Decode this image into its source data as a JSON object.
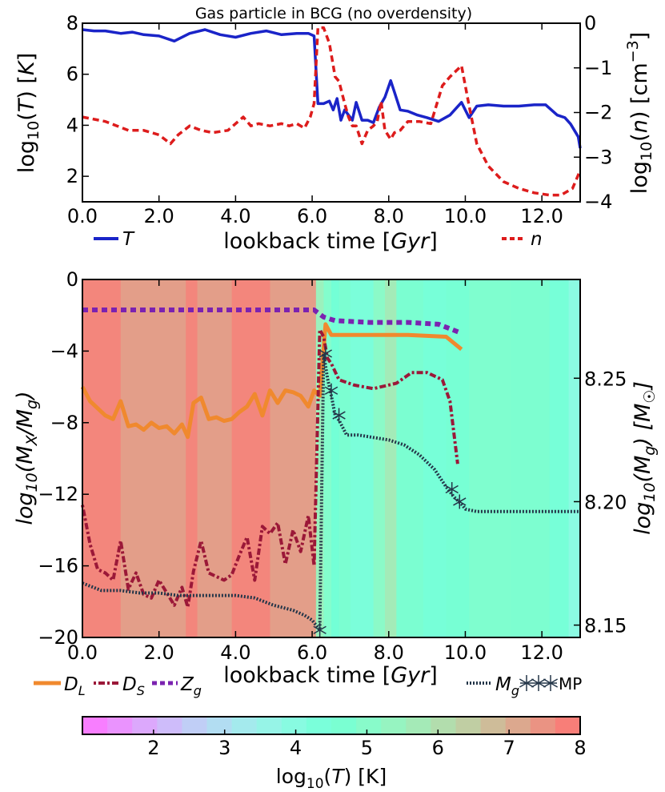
{
  "chart_data": [
    {
      "type": "line",
      "title": "Gas particle in BCG (no overdensity)",
      "xlabel": "lookback time [Gyr]",
      "ylabel": "log10(T) [K]",
      "ylabel2": "log10(n) [cm^-3]",
      "xlim": [
        0,
        13
      ],
      "ylim": [
        1,
        8
      ],
      "ylim2": [
        -4,
        0
      ],
      "xticks": [
        "0.0",
        "2.0",
        "4.0",
        "6.0",
        "8.0",
        "10.0",
        "12.0"
      ],
      "yticks": [
        "2",
        "4",
        "6",
        "8"
      ],
      "yticks2": [
        "0",
        "-1",
        "-2",
        "-3",
        "-4"
      ],
      "legend_T": "T",
      "legend_n": "n",
      "colors": {
        "T": "#1a24c8",
        "n": "#dd1c1c"
      },
      "series": [
        {
          "name": "T",
          "axis": "left",
          "x": [
            0,
            0.3,
            0.6,
            1,
            1.3,
            1.6,
            2,
            2.4,
            2.8,
            3.2,
            3.6,
            4,
            4.4,
            4.8,
            5.2,
            5.6,
            5.9,
            6.05,
            6.15,
            6.3,
            6.45,
            6.55,
            6.65,
            6.75,
            6.85,
            6.95,
            7.05,
            7.15,
            7.3,
            7.45,
            7.6,
            7.75,
            7.9,
            8.05,
            8.15,
            8.3,
            8.5,
            8.75,
            9,
            9.3,
            9.6,
            9.9,
            10.1,
            10.3,
            10.6,
            11,
            11.4,
            11.8,
            12.1,
            12.4,
            12.6,
            12.75,
            12.85,
            12.95,
            13
          ],
          "y": [
            7.75,
            7.7,
            7.7,
            7.6,
            7.65,
            7.55,
            7.5,
            7.3,
            7.6,
            7.75,
            7.55,
            7.45,
            7.6,
            7.7,
            7.55,
            7.6,
            7.6,
            7.5,
            4.85,
            4.85,
            4.95,
            4.6,
            5.05,
            4.2,
            4.6,
            4.4,
            4.2,
            4.9,
            4.2,
            4.2,
            4.1,
            4.7,
            5.1,
            5.75,
            5.3,
            4.6,
            4.55,
            4.4,
            4.3,
            4.15,
            4.4,
            4.9,
            4.3,
            4.75,
            4.8,
            4.75,
            4.75,
            4.8,
            4.8,
            4.4,
            4.3,
            4.05,
            3.8,
            3.55,
            3.1
          ]
        },
        {
          "name": "n",
          "axis": "right",
          "x": [
            0,
            0.3,
            0.6,
            0.9,
            1.2,
            1.6,
            2,
            2.3,
            2.5,
            2.8,
            3.1,
            3.4,
            3.8,
            4.2,
            4.4,
            4.6,
            4.9,
            5.2,
            5.4,
            5.6,
            5.8,
            5.95,
            6.05,
            6.15,
            6.3,
            6.45,
            6.6,
            6.7,
            6.85,
            6.95,
            7.05,
            7.15,
            7.3,
            7.45,
            7.6,
            7.7,
            7.8,
            7.9,
            8.05,
            8.15,
            8.3,
            8.5,
            8.8,
            9.1,
            9.4,
            9.6,
            9.9,
            10.1,
            10.3,
            10.6,
            11,
            11.4,
            11.8,
            12.2,
            12.5,
            12.8,
            13
          ],
          "y": [
            -2.1,
            -2.15,
            -2.2,
            -2.3,
            -2.4,
            -2.4,
            -2.5,
            -2.7,
            -2.5,
            -2.3,
            -2.4,
            -2.45,
            -2.4,
            -2.1,
            -2.3,
            -2.25,
            -2.3,
            -2.25,
            -2.3,
            -2.25,
            -2.35,
            -2.1,
            -1.8,
            -0.1,
            -0.1,
            -0.45,
            -1.2,
            -1.3,
            -1.8,
            -2.1,
            -2.3,
            -2.3,
            -2.7,
            -2.4,
            -2.3,
            -2.2,
            -1.75,
            -2.4,
            -2.6,
            -2.45,
            -2.4,
            -2.2,
            -2.2,
            -2.25,
            -1.4,
            -1.2,
            -0.95,
            -1.85,
            -2.7,
            -3.2,
            -3.55,
            -3.7,
            -3.8,
            -3.85,
            -3.85,
            -3.7,
            -3.3
          ]
        }
      ]
    },
    {
      "type": "line",
      "xlabel": "lookback time [Gyr]",
      "ylabel": "log10(Mx/Mg)",
      "ylabel2": "log10(Mg) [Msun]",
      "xlim": [
        0,
        13
      ],
      "ylim": [
        -20,
        0
      ],
      "ylim2": [
        8.145,
        8.29
      ],
      "xticks": [
        "0.0",
        "2.0",
        "4.0",
        "6.0",
        "8.0",
        "10.0",
        "12.0"
      ],
      "yticks": [
        "0",
        "-4",
        "-8",
        "-12",
        "-16",
        "-20"
      ],
      "yticks2": [
        "8.25",
        "8.20",
        "8.15"
      ],
      "legend_DL": "D",
      "legend_DL_sub": "L",
      "legend_DS": "D",
      "legend_DS_sub": "S",
      "legend_Zg": "Z",
      "legend_Zg_sub": "g",
      "legend_Mg": "M",
      "legend_Mg_sub": "g",
      "legend_MP": "MP",
      "colors": {
        "DL": "#f0892e",
        "DS": "#9b1838",
        "Zg": "#7b22b0",
        "Mg": "#243649",
        "MP": "#243649"
      },
      "background_logT": [
        {
          "x0": 0,
          "x1": 1,
          "logT": 7.7
        },
        {
          "x0": 1,
          "x1": 2.7,
          "logT": 7.3
        },
        {
          "x0": 2.7,
          "x1": 3,
          "logT": 7.7
        },
        {
          "x0": 3,
          "x1": 3.9,
          "logT": 7.3
        },
        {
          "x0": 3.9,
          "x1": 4.9,
          "logT": 7.7
        },
        {
          "x0": 4.9,
          "x1": 6.1,
          "logT": 7.3
        },
        {
          "x0": 6.1,
          "x1": 6.3,
          "logT": 5.5
        },
        {
          "x0": 6.3,
          "x1": 6.5,
          "logT": 4.9
        },
        {
          "x0": 6.5,
          "x1": 6.7,
          "logT": 4.5
        },
        {
          "x0": 6.7,
          "x1": 7.0,
          "logT": 4.7
        },
        {
          "x0": 7.0,
          "x1": 7.6,
          "logT": 4.3
        },
        {
          "x0": 7.6,
          "x1": 7.9,
          "logT": 5.1
        },
        {
          "x0": 7.9,
          "x1": 8.2,
          "logT": 5.7
        },
        {
          "x0": 8.2,
          "x1": 8.9,
          "logT": 4.7
        },
        {
          "x0": 8.9,
          "x1": 9.5,
          "logT": 4.4
        },
        {
          "x0": 9.5,
          "x1": 10.1,
          "logT": 4.6
        },
        {
          "x0": 10.1,
          "x1": 11.2,
          "logT": 4.8
        },
        {
          "x0": 11.2,
          "x1": 12.2,
          "logT": 4.75
        },
        {
          "x0": 12.2,
          "x1": 12.7,
          "logT": 4.4
        },
        {
          "x0": 12.7,
          "x1": 13,
          "logT": 3.9
        }
      ],
      "series": [
        {
          "name": "DL",
          "axis": "left",
          "x": [
            0,
            0.2,
            0.4,
            0.6,
            0.8,
            1,
            1.2,
            1.4,
            1.6,
            1.8,
            2,
            2.2,
            2.4,
            2.6,
            2.75,
            2.9,
            3.1,
            3.3,
            3.5,
            3.7,
            3.9,
            4.1,
            4.3,
            4.5,
            4.7,
            4.9,
            5.1,
            5.3,
            5.5,
            5.7,
            5.9,
            6.05,
            6.2,
            6.35,
            6.5,
            6.8,
            7.5,
            8.5,
            9.5,
            9.9
          ],
          "y": [
            -6,
            -6.8,
            -7.2,
            -7.6,
            -7.8,
            -6.8,
            -8.2,
            -8.1,
            -8.4,
            -8,
            -8.3,
            -8.2,
            -8.6,
            -8.1,
            -8.8,
            -6.9,
            -6.6,
            -7.8,
            -7.7,
            -7.9,
            -7.8,
            -7.4,
            -7.1,
            -6.4,
            -7.6,
            -6.2,
            -6.9,
            -6.2,
            -6.3,
            -6.5,
            -7.1,
            -6.2,
            -6.5,
            -2.5,
            -3.1,
            -3.1,
            -3.1,
            -3.1,
            -3.2,
            -3.9
          ]
        },
        {
          "name": "DS",
          "axis": "left",
          "x": [
            0,
            0.2,
            0.4,
            0.6,
            0.8,
            1,
            1.2,
            1.4,
            1.6,
            1.8,
            2,
            2.2,
            2.4,
            2.6,
            2.75,
            2.9,
            3.1,
            3.3,
            3.5,
            3.7,
            3.9,
            4.1,
            4.3,
            4.5,
            4.7,
            4.9,
            5.1,
            5.3,
            5.5,
            5.7,
            5.9,
            6.05,
            6.2,
            6.3,
            6.4,
            6.5,
            6.7,
            7.1,
            7.6,
            8.2,
            8.6,
            9,
            9.4,
            9.6,
            9.8
          ],
          "y": [
            -12.6,
            -14.8,
            -16.2,
            -16.4,
            -16.8,
            -14.6,
            -17.3,
            -16.4,
            -17.6,
            -17.8,
            -16.8,
            -17.5,
            -18.2,
            -17.2,
            -18.3,
            -16.3,
            -14.6,
            -16.4,
            -16.6,
            -16.8,
            -16.5,
            -15.4,
            -14.4,
            -16.8,
            -13.8,
            -14.2,
            -13.6,
            -15.9,
            -14,
            -15.2,
            -13.2,
            -16,
            -2.8,
            -3.2,
            -4.4,
            -4.7,
            -5.6,
            -5.9,
            -6.1,
            -5.8,
            -5.2,
            -5.2,
            -5.6,
            -6.8,
            -10.3
          ]
        },
        {
          "name": "Zg",
          "axis": "left",
          "x": [
            0,
            6.05,
            6.3,
            6.6,
            7.5,
            8.5,
            9.3,
            9.9
          ],
          "y": [
            -1.7,
            -1.7,
            -2.1,
            -2.3,
            -2.4,
            -2.4,
            -2.5,
            -3.0
          ]
        },
        {
          "name": "Mg",
          "axis": "right",
          "x": [
            0,
            0.5,
            1,
            1.5,
            2,
            2.5,
            3,
            3.5,
            4,
            4.5,
            5,
            5.5,
            5.8,
            6.0,
            6.2,
            6.3,
            6.4,
            6.5,
            6.6,
            6.7,
            6.9,
            7.2,
            7.6,
            8,
            8.4,
            8.8,
            9.2,
            9.5,
            9.7,
            9.9,
            10,
            10.3,
            11,
            12,
            13
          ],
          "y": [
            8.167,
            8.164,
            8.164,
            8.163,
            8.163,
            8.162,
            8.162,
            8.162,
            8.162,
            8.161,
            8.158,
            8.156,
            8.154,
            8.152,
            8.148,
            8.26,
            8.25,
            8.243,
            8.235,
            8.233,
            8.227,
            8.227,
            8.226,
            8.225,
            8.223,
            8.219,
            8.213,
            8.206,
            8.202,
            8.199,
            8.197,
            8.196,
            8.196,
            8.196,
            8.196
          ]
        },
        {
          "name": "MP",
          "axis": "right",
          "marker": "star",
          "x": [
            6.2,
            6.35,
            6.5,
            6.7,
            9.65,
            9.85
          ],
          "y": [
            8.148,
            8.26,
            8.245,
            8.235,
            8.205,
            8.2
          ]
        }
      ]
    },
    {
      "type": "colorbar",
      "label": "log10(T) [K]",
      "range": [
        1.0,
        8.0
      ],
      "ticks": [
        "2",
        "3",
        "4",
        "5",
        "6",
        "7",
        "8"
      ]
    }
  ]
}
